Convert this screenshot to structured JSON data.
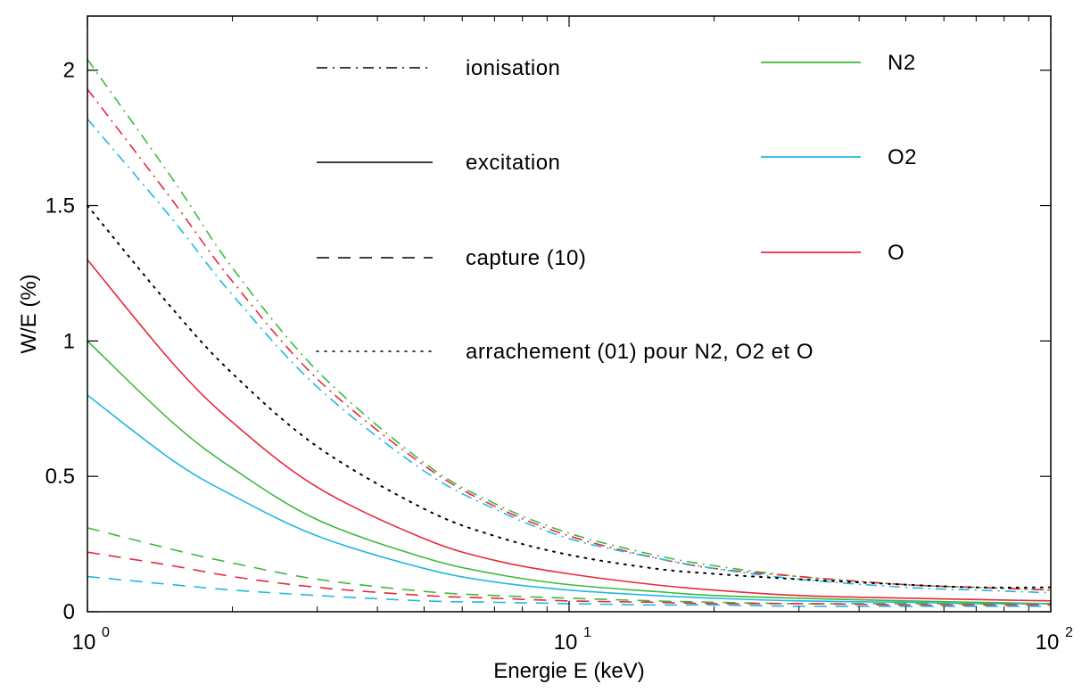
{
  "chart_data": {
    "type": "line",
    "title": "",
    "xlabel": "Energie E (keV)",
    "ylabel": "W/E (%)",
    "xscale": "log",
    "xlim": [
      1,
      100
    ],
    "ylim": [
      0,
      2.2
    ],
    "x": [
      1,
      1.5,
      2,
      3,
      5,
      7,
      10,
      15,
      20,
      30,
      50,
      70,
      100
    ],
    "x_ticks": [
      {
        "value": 1,
        "base": "10",
        "exp": "0"
      },
      {
        "value": 10,
        "base": "10",
        "exp": "1"
      },
      {
        "value": 100,
        "base": "10",
        "exp": "2"
      }
    ],
    "y_ticks": [
      {
        "value": 0,
        "label": "0"
      },
      {
        "value": 0.5,
        "label": "0.5"
      },
      {
        "value": 1,
        "label": "1"
      },
      {
        "value": 1.5,
        "label": "1.5"
      },
      {
        "value": 2,
        "label": "2"
      }
    ],
    "grid": false,
    "legend_position": "top",
    "colors": {
      "N2": "#3db83d",
      "O2": "#22b8e0",
      "O": "#e8283c",
      "black": "#000000"
    },
    "style_legend": [
      {
        "label": "ionisation",
        "dash": "dashdot"
      },
      {
        "label": "excitation",
        "dash": "solid"
      },
      {
        "label": "capture (10)",
        "dash": "dashed"
      },
      {
        "label": "arrachement (01) pour N2, O2 et O",
        "dash": "dotted"
      }
    ],
    "color_legend": [
      {
        "label": "N2",
        "color": "#3db83d"
      },
      {
        "label": "O2",
        "color": "#22b8e0"
      },
      {
        "label": "O",
        "color": "#e8283c"
      }
    ],
    "series": [
      {
        "species": "N2",
        "process": "ionisation",
        "color": "#3db83d",
        "dash": "dashdot",
        "values": [
          2.04,
          1.6,
          1.27,
          0.89,
          0.55,
          0.4,
          0.29,
          0.21,
          0.17,
          0.13,
          0.1,
          0.09,
          0.08
        ]
      },
      {
        "species": "O",
        "process": "ionisation",
        "color": "#e8283c",
        "dash": "dashdot",
        "values": [
          1.93,
          1.52,
          1.22,
          0.86,
          0.54,
          0.39,
          0.28,
          0.2,
          0.16,
          0.13,
          0.1,
          0.09,
          0.08
        ]
      },
      {
        "species": "O2",
        "process": "ionisation",
        "color": "#22b8e0",
        "dash": "dashdot",
        "values": [
          1.82,
          1.45,
          1.17,
          0.83,
          0.52,
          0.38,
          0.27,
          0.2,
          0.16,
          0.12,
          0.09,
          0.08,
          0.07
        ]
      },
      {
        "species": "all",
        "process": "arrachement (01)",
        "color": "#000000",
        "dash": "dotted",
        "values": [
          1.5,
          1.12,
          0.88,
          0.61,
          0.38,
          0.28,
          0.21,
          0.16,
          0.14,
          0.12,
          0.1,
          0.09,
          0.09
        ]
      },
      {
        "species": "O",
        "process": "excitation",
        "color": "#e8283c",
        "dash": "solid",
        "values": [
          1.3,
          0.92,
          0.7,
          0.46,
          0.27,
          0.19,
          0.14,
          0.1,
          0.08,
          0.06,
          0.05,
          0.045,
          0.04
        ]
      },
      {
        "species": "N2",
        "process": "excitation",
        "color": "#3db83d",
        "dash": "solid",
        "values": [
          1.0,
          0.7,
          0.53,
          0.34,
          0.2,
          0.14,
          0.1,
          0.075,
          0.06,
          0.05,
          0.04,
          0.035,
          0.03
        ]
      },
      {
        "species": "O2",
        "process": "excitation",
        "color": "#22b8e0",
        "dash": "solid",
        "values": [
          0.8,
          0.56,
          0.43,
          0.28,
          0.16,
          0.11,
          0.08,
          0.06,
          0.05,
          0.04,
          0.035,
          0.03,
          0.03
        ]
      },
      {
        "species": "N2",
        "process": "capture (10)",
        "color": "#3db83d",
        "dash": "dashed",
        "values": [
          0.31,
          0.23,
          0.18,
          0.12,
          0.075,
          0.06,
          0.05,
          0.04,
          0.035,
          0.03,
          0.03,
          0.03,
          0.03
        ]
      },
      {
        "species": "O",
        "process": "capture (10)",
        "color": "#e8283c",
        "dash": "dashed",
        "values": [
          0.22,
          0.17,
          0.13,
          0.09,
          0.06,
          0.05,
          0.04,
          0.035,
          0.03,
          0.03,
          0.025,
          0.025,
          0.025
        ]
      },
      {
        "species": "O2",
        "process": "capture (10)",
        "color": "#22b8e0",
        "dash": "dashed",
        "values": [
          0.13,
          0.1,
          0.08,
          0.06,
          0.04,
          0.035,
          0.03,
          0.025,
          0.025,
          0.02,
          0.02,
          0.02,
          0.02
        ]
      }
    ]
  }
}
